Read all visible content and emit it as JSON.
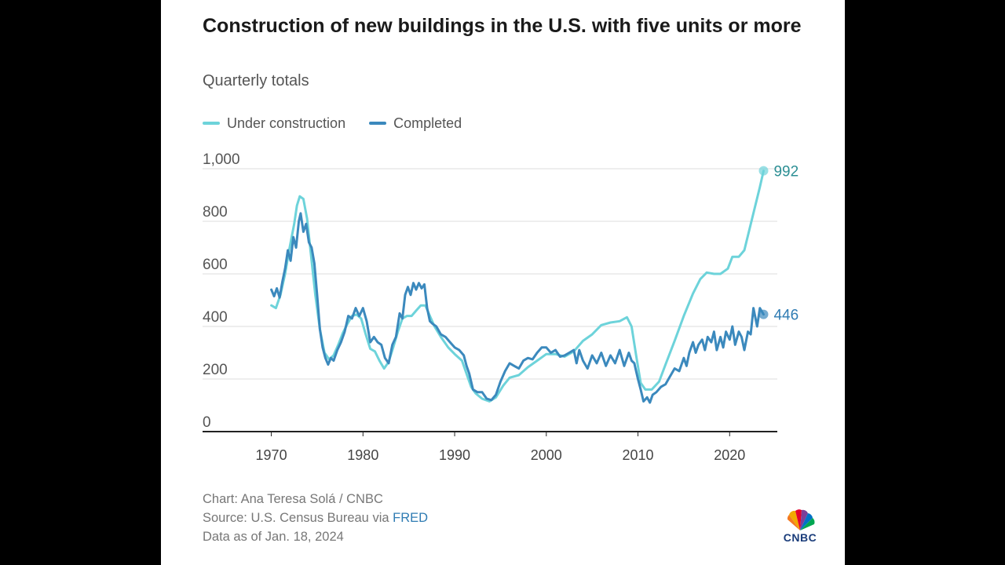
{
  "header": {
    "title": "Construction of new buildings in the U.S. with five units or more",
    "subtitle": "Quarterly totals"
  },
  "legend": {
    "under": "Under construction",
    "completed": "Completed"
  },
  "footer": {
    "credit": "Chart: Ana Teresa Solá / CNBC",
    "source_prefix": "Source: U.S. Census Bureau via ",
    "source_link": "FRED",
    "data_as_of": "Data as of Jan. 18, 2024"
  },
  "logo": {
    "text": "CNBC"
  },
  "colors": {
    "under": "#6dd3da",
    "completed": "#3b89bd",
    "under_label": "#2c8f94",
    "completed_label": "#2f7cb3",
    "link": "#2f7cb3",
    "grid": "#dddddd",
    "axis": "#222222"
  },
  "chart_data": {
    "type": "line",
    "title": "Construction of new buildings in the U.S. with five units or more",
    "subtitle": "Quarterly totals",
    "xlabel": "",
    "ylabel": "",
    "xlim": [
      1962.5,
      2025.2
    ],
    "ylim": [
      0,
      1000
    ],
    "yticks": [
      0,
      200,
      400,
      600,
      800,
      1000
    ],
    "ytick_labels": [
      "0",
      "200",
      "400",
      "600",
      "800",
      "1,000"
    ],
    "xticks": [
      1970,
      1980,
      1990,
      2000,
      2010,
      2020
    ],
    "xtick_labels": [
      "1970",
      "1980",
      "1990",
      "2000",
      "2010",
      "2020"
    ],
    "grid": true,
    "legend_position": "top-left",
    "series": [
      {
        "name": "Under construction",
        "end_label": "992",
        "points": [
          [
            1970.0,
            480
          ],
          [
            1970.5,
            470
          ],
          [
            1971.0,
            520
          ],
          [
            1971.5,
            600
          ],
          [
            1972.0,
            700
          ],
          [
            1972.5,
            790
          ],
          [
            1972.8,
            860
          ],
          [
            1973.1,
            895
          ],
          [
            1973.5,
            885
          ],
          [
            1973.9,
            810
          ],
          [
            1974.3,
            680
          ],
          [
            1974.8,
            520
          ],
          [
            1975.3,
            390
          ],
          [
            1975.8,
            300
          ],
          [
            1976.3,
            275
          ],
          [
            1976.8,
            290
          ],
          [
            1977.3,
            330
          ],
          [
            1977.8,
            375
          ],
          [
            1978.3,
            410
          ],
          [
            1978.8,
            440
          ],
          [
            1979.3,
            445
          ],
          [
            1979.8,
            430
          ],
          [
            1980.3,
            370
          ],
          [
            1980.8,
            315
          ],
          [
            1981.3,
            305
          ],
          [
            1981.8,
            270
          ],
          [
            1982.3,
            240
          ],
          [
            1982.8,
            265
          ],
          [
            1983.3,
            320
          ],
          [
            1983.8,
            380
          ],
          [
            1984.3,
            430
          ],
          [
            1984.8,
            440
          ],
          [
            1985.3,
            440
          ],
          [
            1985.8,
            460
          ],
          [
            1986.3,
            480
          ],
          [
            1986.8,
            480
          ],
          [
            1987.3,
            440
          ],
          [
            1987.8,
            400
          ],
          [
            1988.5,
            360
          ],
          [
            1989.3,
            320
          ],
          [
            1990.0,
            295
          ],
          [
            1990.8,
            270
          ],
          [
            1991.3,
            220
          ],
          [
            1991.8,
            170
          ],
          [
            1992.3,
            145
          ],
          [
            1993.0,
            125
          ],
          [
            1993.8,
            115
          ],
          [
            1994.5,
            130
          ],
          [
            1995.3,
            175
          ],
          [
            1996.0,
            205
          ],
          [
            1997.0,
            215
          ],
          [
            1998.0,
            245
          ],
          [
            1999.0,
            270
          ],
          [
            2000.0,
            295
          ],
          [
            2001.0,
            295
          ],
          [
            2002.0,
            285
          ],
          [
            2003.0,
            305
          ],
          [
            2004.0,
            345
          ],
          [
            2005.0,
            370
          ],
          [
            2006.0,
            405
          ],
          [
            2007.0,
            415
          ],
          [
            2008.0,
            420
          ],
          [
            2008.8,
            435
          ],
          [
            2009.3,
            400
          ],
          [
            2009.8,
            290
          ],
          [
            2010.3,
            185
          ],
          [
            2010.8,
            160
          ],
          [
            2011.5,
            160
          ],
          [
            2012.3,
            190
          ],
          [
            2013.0,
            255
          ],
          [
            2014.0,
            345
          ],
          [
            2015.0,
            440
          ],
          [
            2016.0,
            525
          ],
          [
            2016.8,
            580
          ],
          [
            2017.5,
            605
          ],
          [
            2018.3,
            600
          ],
          [
            2019.0,
            600
          ],
          [
            2019.8,
            620
          ],
          [
            2020.3,
            665
          ],
          [
            2021.0,
            665
          ],
          [
            2021.6,
            690
          ],
          [
            2022.2,
            775
          ],
          [
            2022.8,
            860
          ],
          [
            2023.3,
            930
          ],
          [
            2023.7,
            992
          ]
        ]
      },
      {
        "name": "Completed",
        "end_label": "446",
        "points": [
          [
            1970.0,
            540
          ],
          [
            1970.3,
            515
          ],
          [
            1970.6,
            545
          ],
          [
            1970.9,
            510
          ],
          [
            1971.2,
            570
          ],
          [
            1971.5,
            620
          ],
          [
            1971.8,
            690
          ],
          [
            1972.1,
            650
          ],
          [
            1972.4,
            740
          ],
          [
            1972.7,
            700
          ],
          [
            1973.0,
            800
          ],
          [
            1973.2,
            830
          ],
          [
            1973.5,
            760
          ],
          [
            1973.8,
            790
          ],
          [
            1974.1,
            720
          ],
          [
            1974.4,
            700
          ],
          [
            1974.7,
            640
          ],
          [
            1975.0,
            520
          ],
          [
            1975.3,
            390
          ],
          [
            1975.6,
            320
          ],
          [
            1975.9,
            280
          ],
          [
            1976.2,
            255
          ],
          [
            1976.5,
            280
          ],
          [
            1976.8,
            270
          ],
          [
            1977.2,
            310
          ],
          [
            1977.6,
            340
          ],
          [
            1978.0,
            380
          ],
          [
            1978.4,
            440
          ],
          [
            1978.8,
            430
          ],
          [
            1979.2,
            470
          ],
          [
            1979.6,
            440
          ],
          [
            1980.0,
            470
          ],
          [
            1980.4,
            420
          ],
          [
            1980.8,
            340
          ],
          [
            1981.2,
            360
          ],
          [
            1981.6,
            340
          ],
          [
            1982.0,
            330
          ],
          [
            1982.4,
            280
          ],
          [
            1982.8,
            260
          ],
          [
            1983.2,
            330
          ],
          [
            1983.6,
            360
          ],
          [
            1984.0,
            450
          ],
          [
            1984.3,
            430
          ],
          [
            1984.6,
            520
          ],
          [
            1984.9,
            550
          ],
          [
            1985.2,
            520
          ],
          [
            1985.5,
            565
          ],
          [
            1985.8,
            540
          ],
          [
            1986.1,
            565
          ],
          [
            1986.4,
            545
          ],
          [
            1986.7,
            560
          ],
          [
            1987.0,
            470
          ],
          [
            1987.3,
            420
          ],
          [
            1987.6,
            410
          ],
          [
            1988.0,
            400
          ],
          [
            1988.5,
            370
          ],
          [
            1989.0,
            360
          ],
          [
            1989.5,
            340
          ],
          [
            1990.0,
            320
          ],
          [
            1990.5,
            310
          ],
          [
            1991.0,
            290
          ],
          [
            1991.3,
            250
          ],
          [
            1991.6,
            220
          ],
          [
            1992.0,
            160
          ],
          [
            1992.5,
            150
          ],
          [
            1993.0,
            150
          ],
          [
            1993.5,
            125
          ],
          [
            1994.0,
            120
          ],
          [
            1994.5,
            140
          ],
          [
            1995.0,
            190
          ],
          [
            1995.5,
            230
          ],
          [
            1996.0,
            260
          ],
          [
            1996.5,
            250
          ],
          [
            1997.0,
            240
          ],
          [
            1997.5,
            270
          ],
          [
            1998.0,
            280
          ],
          [
            1998.5,
            275
          ],
          [
            1999.0,
            300
          ],
          [
            1999.5,
            320
          ],
          [
            2000.0,
            320
          ],
          [
            2000.5,
            300
          ],
          [
            2001.0,
            310
          ],
          [
            2001.5,
            285
          ],
          [
            2002.0,
            290
          ],
          [
            2002.5,
            300
          ],
          [
            2003.0,
            310
          ],
          [
            2003.3,
            260
          ],
          [
            2003.6,
            310
          ],
          [
            2004.0,
            270
          ],
          [
            2004.5,
            240
          ],
          [
            2005.0,
            290
          ],
          [
            2005.5,
            260
          ],
          [
            2006.0,
            300
          ],
          [
            2006.5,
            250
          ],
          [
            2007.0,
            290
          ],
          [
            2007.5,
            260
          ],
          [
            2008.0,
            310
          ],
          [
            2008.5,
            250
          ],
          [
            2009.0,
            300
          ],
          [
            2009.3,
            270
          ],
          [
            2009.6,
            260
          ],
          [
            2010.0,
            200
          ],
          [
            2010.3,
            160
          ],
          [
            2010.6,
            115
          ],
          [
            2011.0,
            130
          ],
          [
            2011.3,
            110
          ],
          [
            2011.6,
            140
          ],
          [
            2012.0,
            150
          ],
          [
            2012.5,
            170
          ],
          [
            2013.0,
            180
          ],
          [
            2013.5,
            210
          ],
          [
            2014.0,
            240
          ],
          [
            2014.5,
            230
          ],
          [
            2015.0,
            280
          ],
          [
            2015.3,
            250
          ],
          [
            2015.6,
            300
          ],
          [
            2016.0,
            340
          ],
          [
            2016.3,
            300
          ],
          [
            2016.6,
            330
          ],
          [
            2017.0,
            350
          ],
          [
            2017.3,
            310
          ],
          [
            2017.6,
            360
          ],
          [
            2018.0,
            340
          ],
          [
            2018.3,
            380
          ],
          [
            2018.6,
            310
          ],
          [
            2019.0,
            360
          ],
          [
            2019.3,
            320
          ],
          [
            2019.6,
            380
          ],
          [
            2020.0,
            350
          ],
          [
            2020.3,
            400
          ],
          [
            2020.6,
            330
          ],
          [
            2021.0,
            380
          ],
          [
            2021.3,
            360
          ],
          [
            2021.6,
            310
          ],
          [
            2022.0,
            380
          ],
          [
            2022.3,
            370
          ],
          [
            2022.6,
            470
          ],
          [
            2023.0,
            400
          ],
          [
            2023.3,
            470
          ],
          [
            2023.7,
            446
          ]
        ]
      }
    ]
  }
}
